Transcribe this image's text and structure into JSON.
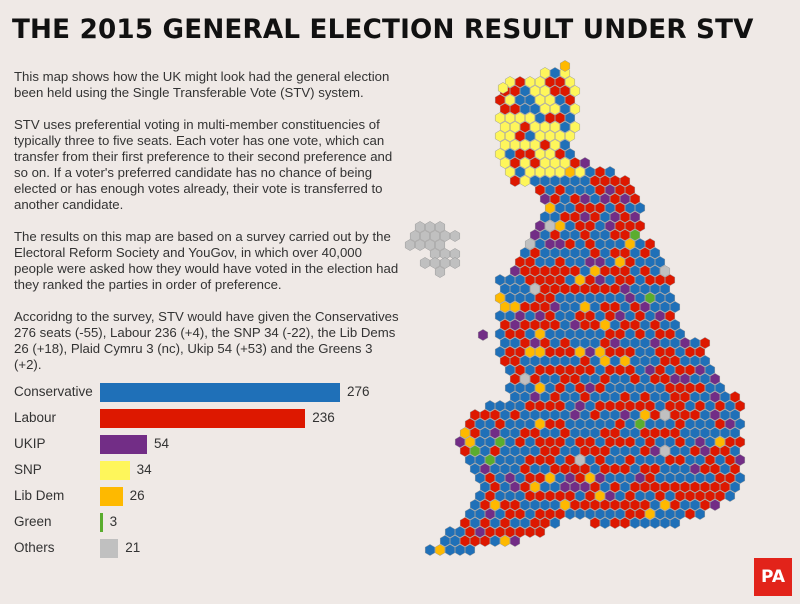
{
  "title": "THE 2015 GENERAL ELECTION RESULT UNDER STV",
  "intro": [
    "This map shows how the UK might look had the general election been held using the Single Transferable Vote (STV) system.",
    "STV uses preferential voting in multi-member constituencies of typically three to five seats. Each voter has one vote, which can transfer from their first preference to their second preference and so on. If a voter's preferred candidate has no chance of being elected or has enough votes already, their vote is transferred to another candidate.",
    "The results on this map are based on a survey carried out by the Electoral Reform Society and YouGov, in which over 40,000 people were asked how they would have voted in the election had they ranked the parties in order of preference.",
    "Accoridng to the survey, STV would have given the Conservatives 276 seats (-55), Labour 236 (+4), the SNP 34 (-22), the Lib Dems 26 (+18), Plaid Cymru 3 (nc), Ukip 54 (+53) and the Greens 3 (+2)."
  ],
  "chart_data": {
    "type": "bar",
    "orientation": "horizontal",
    "categories": [
      "Conservative",
      "Labour",
      "UKIP",
      "SNP",
      "Lib Dem",
      "Green",
      "Others"
    ],
    "values": [
      276,
      236,
      54,
      34,
      26,
      3,
      21
    ],
    "colors": [
      "#1f70b8",
      "#dd1800",
      "#722d86",
      "#fef65b",
      "#feb900",
      "#5aad2e",
      "#c0c0c0"
    ],
    "labels": [
      "Conservative",
      "Labour",
      "UKIP",
      "SNP",
      "Lib Dem",
      "Green",
      "Others"
    ],
    "value_labels": [
      "276",
      "236",
      "54",
      "34",
      "26",
      "3",
      "21"
    ],
    "xlim": [
      0,
      276
    ],
    "grid": false
  },
  "map": {
    "type": "hex cartogram",
    "party_colors": {
      "Conservative": "#1f70b8",
      "Labour": "#dd1800",
      "UKIP": "#722d86",
      "SNP": "#fef65b",
      "Lib Dem": "#feb900",
      "Green": "#5aad2e",
      "Others": "#c0c0c0"
    }
  },
  "logo": "PA"
}
